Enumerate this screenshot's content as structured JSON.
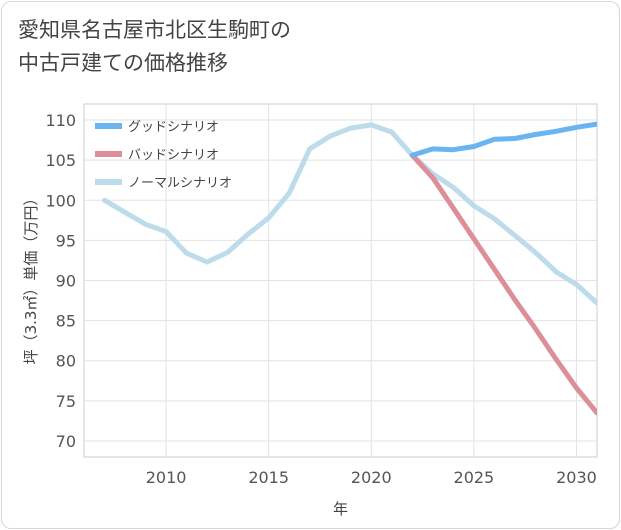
{
  "title_line1": "愛知県名古屋市北区生駒町の",
  "title_line2": "中古戸建ての価格推移",
  "chart_data": {
    "type": "line",
    "title": "愛知県名古屋市北区生駒町の中古戸建ての価格推移",
    "xlabel": "年",
    "ylabel": "坪（3.3㎡）単価（万円）",
    "xlim": [
      2006,
      2031
    ],
    "ylim": [
      68,
      112
    ],
    "x_ticks": [
      2010,
      2015,
      2020,
      2025,
      2030
    ],
    "y_ticks": [
      70,
      75,
      80,
      85,
      90,
      95,
      100,
      105,
      110
    ],
    "grid": true,
    "legend_position": "top-left",
    "series": [
      {
        "name": "グッドシナリオ",
        "color": "#6ab4f0",
        "x": [
          2022,
          2023,
          2024,
          2025,
          2026,
          2027,
          2028,
          2029,
          2030,
          2031
        ],
        "y": [
          105.6,
          106.4,
          106.3,
          106.7,
          107.6,
          107.7,
          108.2,
          108.6,
          109.1,
          109.5
        ]
      },
      {
        "name": "バッドシナリオ",
        "color": "#dc8f98",
        "x": [
          2022,
          2023,
          2024,
          2025,
          2026,
          2027,
          2028,
          2029,
          2030,
          2031
        ],
        "y": [
          105.6,
          102.8,
          99.0,
          95.2,
          91.4,
          87.6,
          84.0,
          80.2,
          76.6,
          73.5
        ]
      },
      {
        "name": "ノーマルシナリオ",
        "color": "#bcdcec",
        "x": [
          2007,
          2008,
          2009,
          2010,
          2011,
          2012,
          2013,
          2014,
          2015,
          2016,
          2017,
          2018,
          2019,
          2020,
          2021,
          2022,
          2023,
          2024,
          2025,
          2026,
          2027,
          2028,
          2029,
          2030,
          2031
        ],
        "y": [
          100.0,
          98.5,
          97.0,
          96.1,
          93.4,
          92.3,
          93.5,
          95.8,
          97.8,
          100.9,
          106.4,
          108.0,
          109.0,
          109.4,
          108.5,
          105.6,
          103.3,
          101.6,
          99.3,
          97.7,
          95.6,
          93.5,
          91.1,
          89.5,
          87.2
        ]
      }
    ]
  }
}
